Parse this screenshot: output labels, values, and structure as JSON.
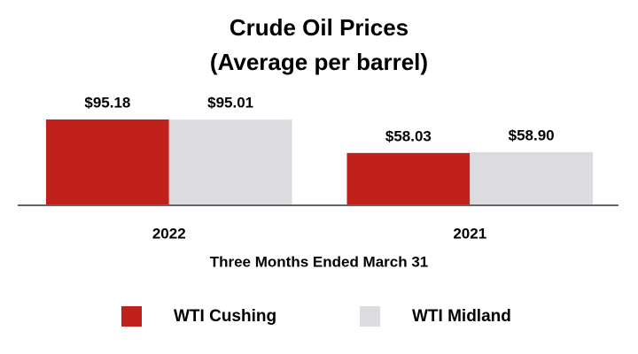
{
  "chart_data": {
    "type": "bar",
    "title": [
      "Crude Oil Prices",
      "(Average per barrel)"
    ],
    "categories": [
      "2022",
      "2021"
    ],
    "x_label": "Three Months Ended March 31",
    "series": [
      {
        "name": "WTI Cushing",
        "color": "#c0211a",
        "values": [
          95.18,
          58.03
        ],
        "value_labels": [
          "$95.18",
          "$58.03"
        ]
      },
      {
        "name": "WTI Midland",
        "color": "#dcdce0",
        "values": [
          95.01,
          58.9
        ],
        "value_labels": [
          "$95.01",
          "$58.90"
        ]
      }
    ]
  }
}
